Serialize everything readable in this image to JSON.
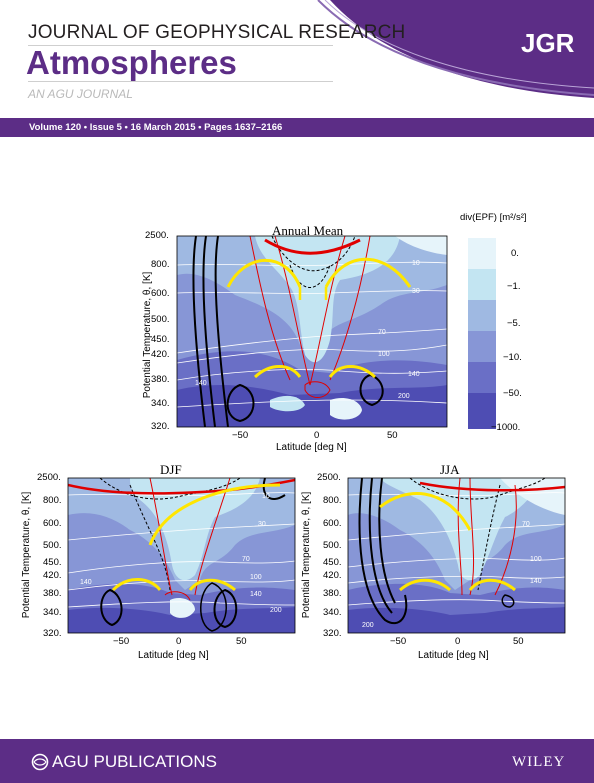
{
  "header": {
    "journal_title": "JOURNAL OF GEOPHYSICAL RESEARCH",
    "subtitle": "Atmospheres",
    "tagline": "AN AGU JOURNAL",
    "logo": "JGR",
    "volume_info": "Volume 120 • Issue 5 • 16 March 2015 • Pages 1637–2166"
  },
  "figure": {
    "colorbar": {
      "label": "div(EPF) [m²/s²]",
      "ticks": [
        "0.",
        "−1.",
        "−5.",
        "−10.",
        "−50.",
        "−1000."
      ],
      "colors": [
        "#e6f4fa",
        "#c3e5f2",
        "#9fb9e2",
        "#8796d6",
        "#6a6fc6",
        "#4e4db3"
      ]
    },
    "panels": [
      {
        "title": "Annual Mean"
      },
      {
        "title": "DJF"
      },
      {
        "title": "JJA"
      }
    ],
    "y_label": "Potential Temperature, θ, [K]",
    "x_label": "Latitude [deg N]",
    "y_ticks": [
      "2500.",
      "800.",
      "600.",
      "500.",
      "450.",
      "420.",
      "380.",
      "340.",
      "320."
    ],
    "x_ticks": [
      "−50",
      "0",
      "50"
    ],
    "contour_labels": [
      "10",
      "30",
      "70",
      "100",
      "140",
      "200"
    ]
  },
  "footer": {
    "publisher": "AGU PUBLICATIONS",
    "wiley": "WILEY"
  }
}
